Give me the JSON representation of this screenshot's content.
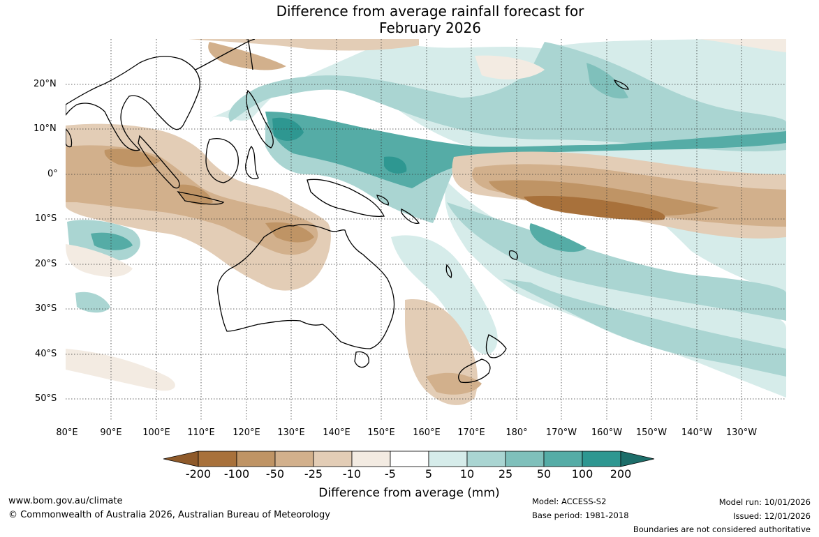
{
  "title_line1": "Difference from average rainfall forecast for",
  "title_line2": "February 2026",
  "map": {
    "lat_labels": [
      "20°N",
      "10°N",
      "0°",
      "10°S",
      "20°S",
      "30°S",
      "40°S",
      "50°S"
    ],
    "lon_labels": [
      "80°E",
      "90°E",
      "100°E",
      "110°E",
      "120°E",
      "130°E",
      "140°E",
      "150°E",
      "160°E",
      "170°E",
      "180°",
      "170°W",
      "160°W",
      "150°W",
      "140°W",
      "130°W"
    ],
    "lon_range": [
      80,
      235
    ],
    "lat_range": [
      -55,
      29
    ]
  },
  "colorbar": {
    "labels": [
      "-200",
      "-100",
      "-50",
      "-25",
      "-10",
      "-5",
      "5",
      "10",
      "25",
      "50",
      "100",
      "200"
    ],
    "colors": [
      "#a8713b",
      "#bf9465",
      "#d2b08c",
      "#e3cdb6",
      "#f3ebe2",
      "#ffffff",
      "#d6ecea",
      "#aad5d2",
      "#7fc0bb",
      "#55aca6",
      "#2e9791",
      "#1d6e6a"
    ],
    "title": "Difference from average (mm)"
  },
  "footer": {
    "website": "www.bom.gov.au/climate",
    "copyright": "© Commonwealth of Australia 2026, Australian Bureau of Meteorology",
    "model": "Model: ACCESS-S2",
    "base_period": "Base period: 1981-2018",
    "model_run": "Model run: 10/01/2026",
    "issued": "Issued: 12/01/2026",
    "disclaimer": "Boundaries are not considered authoritative"
  }
}
